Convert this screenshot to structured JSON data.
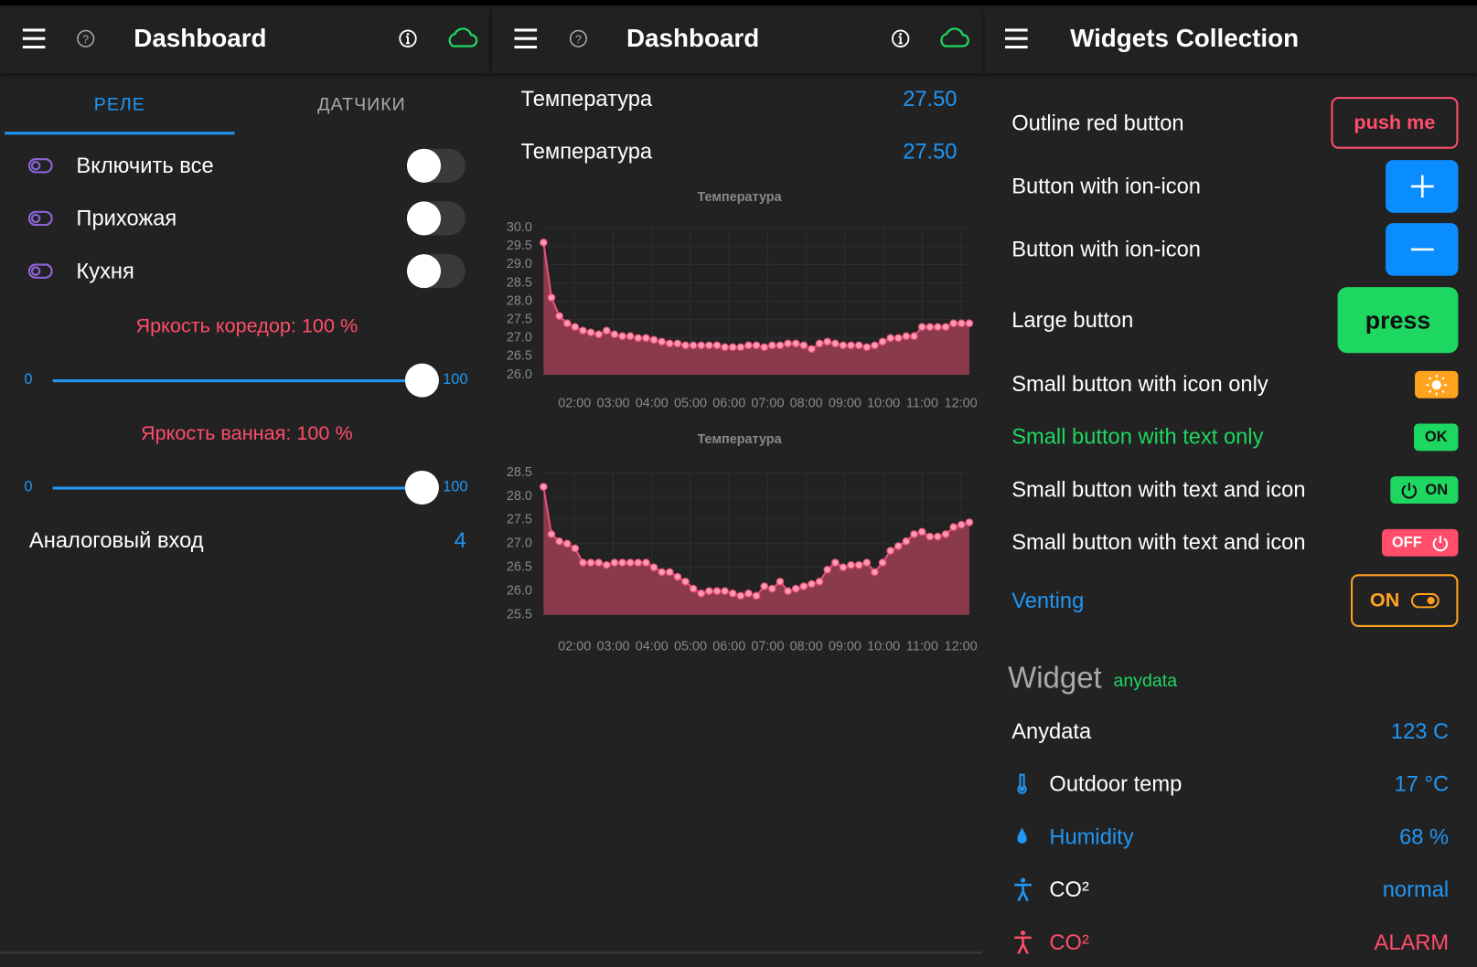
{
  "panels": [
    {
      "header": {
        "title": "Dashboard"
      },
      "tabs": [
        "РЕЛЕ",
        "ДАТЧИКИ"
      ],
      "switches": [
        {
          "label": "Включить все"
        },
        {
          "label": "Прихожая"
        },
        {
          "label": "Кухня"
        }
      ],
      "sliders": [
        {
          "label": "Яркость коредор: 100 %",
          "min": 0,
          "max": 100,
          "value": 100
        },
        {
          "label": "Яркость ванная: 100 %",
          "min": 0,
          "max": 100,
          "value": 100
        }
      ],
      "analog": {
        "label": "Аналоговый вход",
        "value": 4
      }
    },
    {
      "header": {
        "title": "Dashboard"
      },
      "readings": [
        {
          "label": "Температура",
          "value": "27.50"
        },
        {
          "label": "Температура",
          "value": "27.50"
        }
      ],
      "charts": [
        {
          "type": "line",
          "title": "Температура",
          "ylim": [
            26,
            30
          ],
          "yticks": [
            {
              "value": 26,
              "label": "26.0"
            },
            26.5,
            {
              "value": 27,
              "label": "27.0"
            },
            27.5,
            {
              "value": 28,
              "label": "28.0"
            },
            28.5,
            {
              "value": 29,
              "label": "29.0"
            },
            29.5,
            {
              "value": 30,
              "label": "30.0"
            }
          ],
          "xticks": [
            "02:00",
            "03:00",
            "04:00",
            "05:00",
            "06:00",
            "07:00",
            "08:00",
            "09:00",
            "10:00",
            "11:00",
            "12:00"
          ],
          "values": [
            29.6,
            28.1,
            27.6,
            27.4,
            27.3,
            27.2,
            27.15,
            27.1,
            27.2,
            27.1,
            27.05,
            27.05,
            27.0,
            27.0,
            26.95,
            26.9,
            26.85,
            26.85,
            26.8,
            26.8,
            26.8,
            26.8,
            26.8,
            26.75,
            26.75,
            26.75,
            26.8,
            26.8,
            26.75,
            26.8,
            26.8,
            26.85,
            26.85,
            26.8,
            26.7,
            26.85,
            26.9,
            26.85,
            26.8,
            26.8,
            26.8,
            26.75,
            26.8,
            26.9,
            27.0,
            27.0,
            27.05,
            27.05,
            27.3,
            27.3,
            27.3,
            27.3,
            27.4,
            27.4,
            27.4
          ]
        },
        {
          "type": "line",
          "title": "Температура",
          "ylim": [
            25.5,
            28.5
          ],
          "yticks": [
            25.5,
            {
              "value": 26,
              "label": "26.0"
            },
            26.5,
            {
              "value": 27,
              "label": "27.0"
            },
            27.5,
            {
              "value": 28,
              "label": "28.0"
            },
            28.5
          ],
          "xticks": [
            "02:00",
            "03:00",
            "04:00",
            "05:00",
            "06:00",
            "07:00",
            "08:00",
            "09:00",
            "10:00",
            "11:00",
            "12:00"
          ],
          "values": [
            28.2,
            27.2,
            27.05,
            27.0,
            26.9,
            26.6,
            26.6,
            26.6,
            26.55,
            26.6,
            26.6,
            26.6,
            26.6,
            26.6,
            26.5,
            26.4,
            26.4,
            26.3,
            26.2,
            26.05,
            25.95,
            26.0,
            26.0,
            26.0,
            25.95,
            25.9,
            25.95,
            25.9,
            26.1,
            26.05,
            26.2,
            26.0,
            26.05,
            26.1,
            26.15,
            26.2,
            26.45,
            26.6,
            26.5,
            26.55,
            26.55,
            26.6,
            26.4,
            26.6,
            26.85,
            26.95,
            27.05,
            27.2,
            27.25,
            27.15,
            27.15,
            27.2,
            27.35,
            27.4,
            27.45
          ]
        }
      ]
    },
    {
      "header": {
        "title": "Widgets Collection"
      },
      "buttons": [
        {
          "label": "Outline red button",
          "button": "push me"
        },
        {
          "label": "Button with ion-icon"
        },
        {
          "label": "Button with ion-icon"
        },
        {
          "label": "Large button",
          "button": "press"
        },
        {
          "label": "Small button with icon only"
        },
        {
          "label": "Small button with text only",
          "button": "OK"
        },
        {
          "label": "Small button with text and icon",
          "button": "ON"
        },
        {
          "label": "Small button with text and icon",
          "button": "OFF"
        },
        {
          "label": "Venting",
          "button": "ON"
        }
      ],
      "section": {
        "title": "Widget",
        "subtitle": "anydata"
      },
      "anydata": [
        {
          "label": "Anydata",
          "value": "123 C"
        },
        {
          "label": "Outdoor temp",
          "value": "17 °C"
        },
        {
          "label": "Humidity",
          "value": "68 %"
        },
        {
          "label": "CO²",
          "value": "normal"
        },
        {
          "label": "CO²",
          "value": "ALARM"
        }
      ]
    }
  ]
}
